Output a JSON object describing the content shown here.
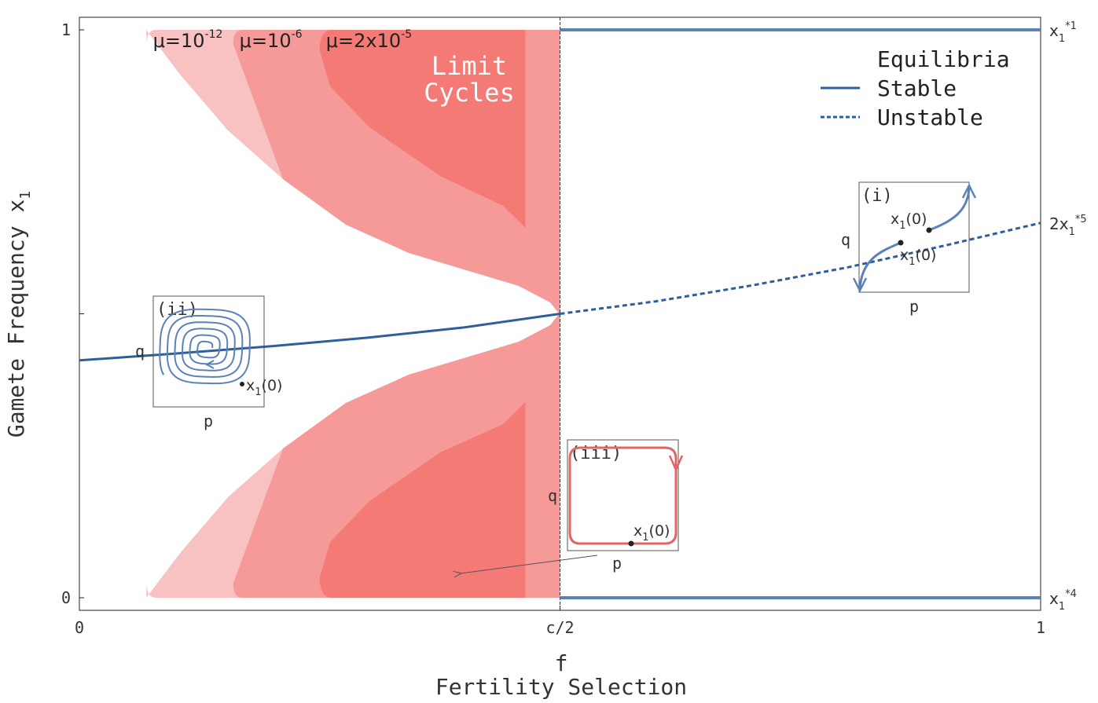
{
  "chart_data": {
    "type": "area",
    "xlim": [
      0,
      1
    ],
    "ylim": [
      0,
      1
    ],
    "xticks": [
      {
        "value": 0,
        "label": "0"
      },
      {
        "value": 0.5,
        "label": "c/2"
      },
      {
        "value": 1,
        "label": "1"
      }
    ],
    "yticks": [
      {
        "value": 0,
        "label": "0"
      },
      {
        "value": 1,
        "label": "1"
      }
    ],
    "ymid_tick": 0.5,
    "xlabel_symbol": "f",
    "xlabel": "Fertility Selection",
    "ylabel": "Gamete Frequency",
    "ylabel_symbol": "x",
    "ylabel_symbol_sub": "1",
    "grid": false,
    "legend": {
      "position": "top-right",
      "title": "Equilibria",
      "entries": [
        {
          "label": "Stable",
          "style": "solid"
        },
        {
          "label": "Unstable",
          "style": "dashed"
        }
      ]
    },
    "colors": {
      "stable_line": "#2f5f9a",
      "boundary_line": "#5a82b4",
      "region_mu1": "#f8c2c2",
      "region_mu2": "#f59a99",
      "region_mu3": "#f47a76",
      "inset_blue": "#5b82b8",
      "inset_red": "#e06666"
    },
    "mu_labels": [
      {
        "text": "μ=10",
        "sup": "-12",
        "x": 0.07
      },
      {
        "text": "μ=10",
        "sup": "-6",
        "x": 0.16
      },
      {
        "text": "μ=2x10",
        "sup": "-5",
        "x": 0.25
      }
    ],
    "limit_cycle_label": [
      "Limit",
      "Cycles"
    ],
    "regions": [
      {
        "mu": "1e-12",
        "start_x": 0.07
      },
      {
        "mu": "1e-6",
        "start_x": 0.16
      },
      {
        "mu": "2e-5",
        "start_x": 0.25
      }
    ],
    "region_inner_edge": [
      {
        "x": 0.07,
        "y": 0.97
      },
      {
        "x": 0.15,
        "y": 0.9
      },
      {
        "x": 0.25,
        "y": 0.81
      },
      {
        "x": 0.35,
        "y": 0.71
      },
      {
        "x": 0.45,
        "y": 0.6
      },
      {
        "x": 0.5,
        "y": 0.53
      }
    ],
    "stable_equilibrium": [
      {
        "x": 0,
        "y": 0.418
      },
      {
        "x": 0.1,
        "y": 0.43
      },
      {
        "x": 0.2,
        "y": 0.443
      },
      {
        "x": 0.3,
        "y": 0.458
      },
      {
        "x": 0.4,
        "y": 0.476
      },
      {
        "x": 0.5,
        "y": 0.5
      }
    ],
    "unstable_equilibrium": [
      {
        "x": 0.5,
        "y": 0.5
      },
      {
        "x": 0.6,
        "y": 0.522
      },
      {
        "x": 0.7,
        "y": 0.55
      },
      {
        "x": 0.8,
        "y": 0.582
      },
      {
        "x": 0.9,
        "y": 0.62
      },
      {
        "x": 1.0,
        "y": 0.66
      }
    ],
    "boundary_equilibria": [
      {
        "y": 1,
        "x_from": 0.5,
        "x_to": 1,
        "style": "solid"
      },
      {
        "y": 0,
        "x_from": 0.5,
        "x_to": 1,
        "style": "solid"
      }
    ],
    "right_labels": [
      {
        "y": 1,
        "base": "x",
        "sub": "1",
        "sup": "*1"
      },
      {
        "y": 0.66,
        "base": "2x",
        "sub": "1",
        "sup": "*5"
      },
      {
        "y": 0,
        "base": "x",
        "sub": "1",
        "sup": "*4"
      }
    ],
    "insets": [
      {
        "id": "i",
        "label": "(i)",
        "xlabel": "p",
        "ylabel": "q",
        "point_label": "x",
        "point_sub": "1",
        "point_suffix": "(0)"
      },
      {
        "id": "ii",
        "label": "(ii)",
        "xlabel": "p",
        "ylabel": "q",
        "point_label": "x",
        "point_sub": "1",
        "point_suffix": "(0)"
      },
      {
        "id": "iii",
        "label": "(iii)",
        "xlabel": "p",
        "ylabel": "q",
        "point_label": "x",
        "point_sub": "1",
        "point_suffix": "(0)"
      }
    ]
  }
}
